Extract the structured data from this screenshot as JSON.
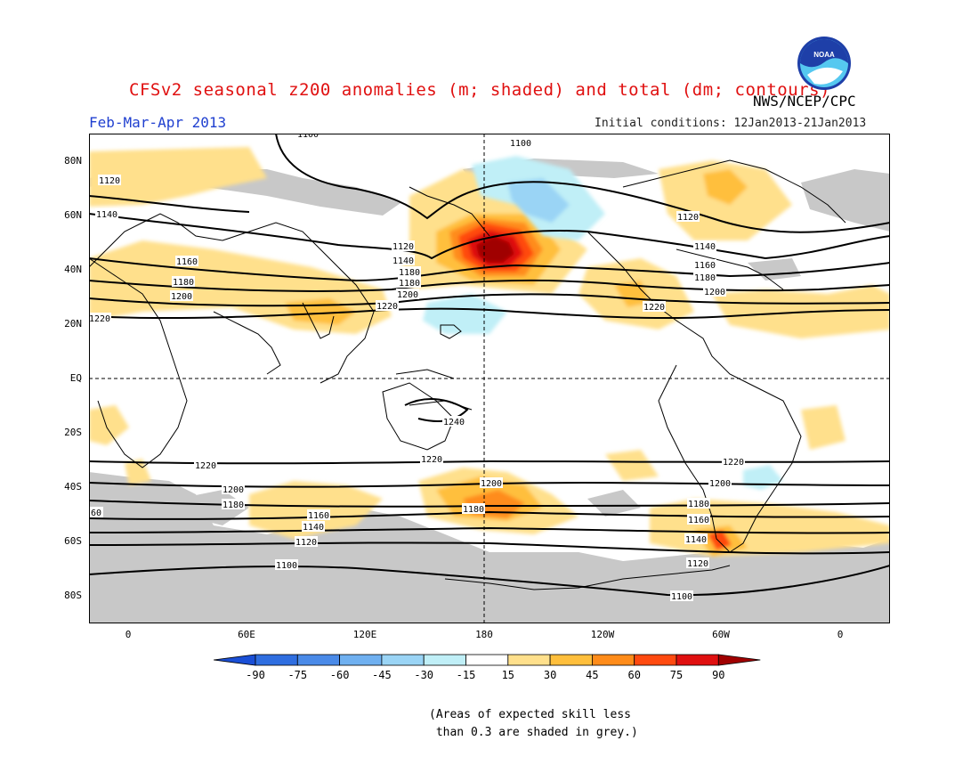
{
  "title": "CFSv2 seasonal z200 anomalies (m; shaded) and total (dm; contours)",
  "agency": "NWS/NCEP/CPC",
  "logo_text": "NOAA",
  "season": "Feb-Mar-Apr 2013",
  "initial_conditions": "Initial conditions: 12Jan2013-21Jan2013",
  "lat_labels": [
    "80N",
    "60N",
    "40N",
    "20N",
    "EQ",
    "20S",
    "40S",
    "60S",
    "80S"
  ],
  "lon_labels": [
    "0",
    "60E",
    "120E",
    "180",
    "120W",
    "60W",
    "0"
  ],
  "colorbar": {
    "ticks": [
      "-90",
      "-75",
      "-60",
      "-45",
      "-30",
      "-15",
      "15",
      "30",
      "45",
      "60",
      "75",
      "90"
    ],
    "colors": [
      "#1a4fd6",
      "#2f6ee0",
      "#4a8ae8",
      "#6fb0f0",
      "#9ad4f5",
      "#c0eff7",
      "#ffffff",
      "#ffe08c",
      "#ffbf3c",
      "#ff8c1a",
      "#ff4a10",
      "#e01010",
      "#a00000"
    ]
  },
  "note": "(Areas of expected skill less\n than 0.3 are shaded in grey.)",
  "contour_labels": [
    "1100",
    "1100",
    "1120",
    "1140",
    "1160",
    "1180",
    "1200",
    "1220",
    "1120",
    "1140",
    "1180",
    "1180",
    "1200",
    "1220",
    "1120",
    "1140",
    "1160",
    "1180",
    "1200",
    "1220",
    "1240",
    "1220",
    "1220",
    "1200",
    "1180",
    "1160",
    "1140",
    "1120",
    "1100",
    "1200",
    "1180",
    "1180",
    "1160",
    "1140",
    "1120",
    "1100",
    "1200",
    "1220",
    "60"
  ]
}
